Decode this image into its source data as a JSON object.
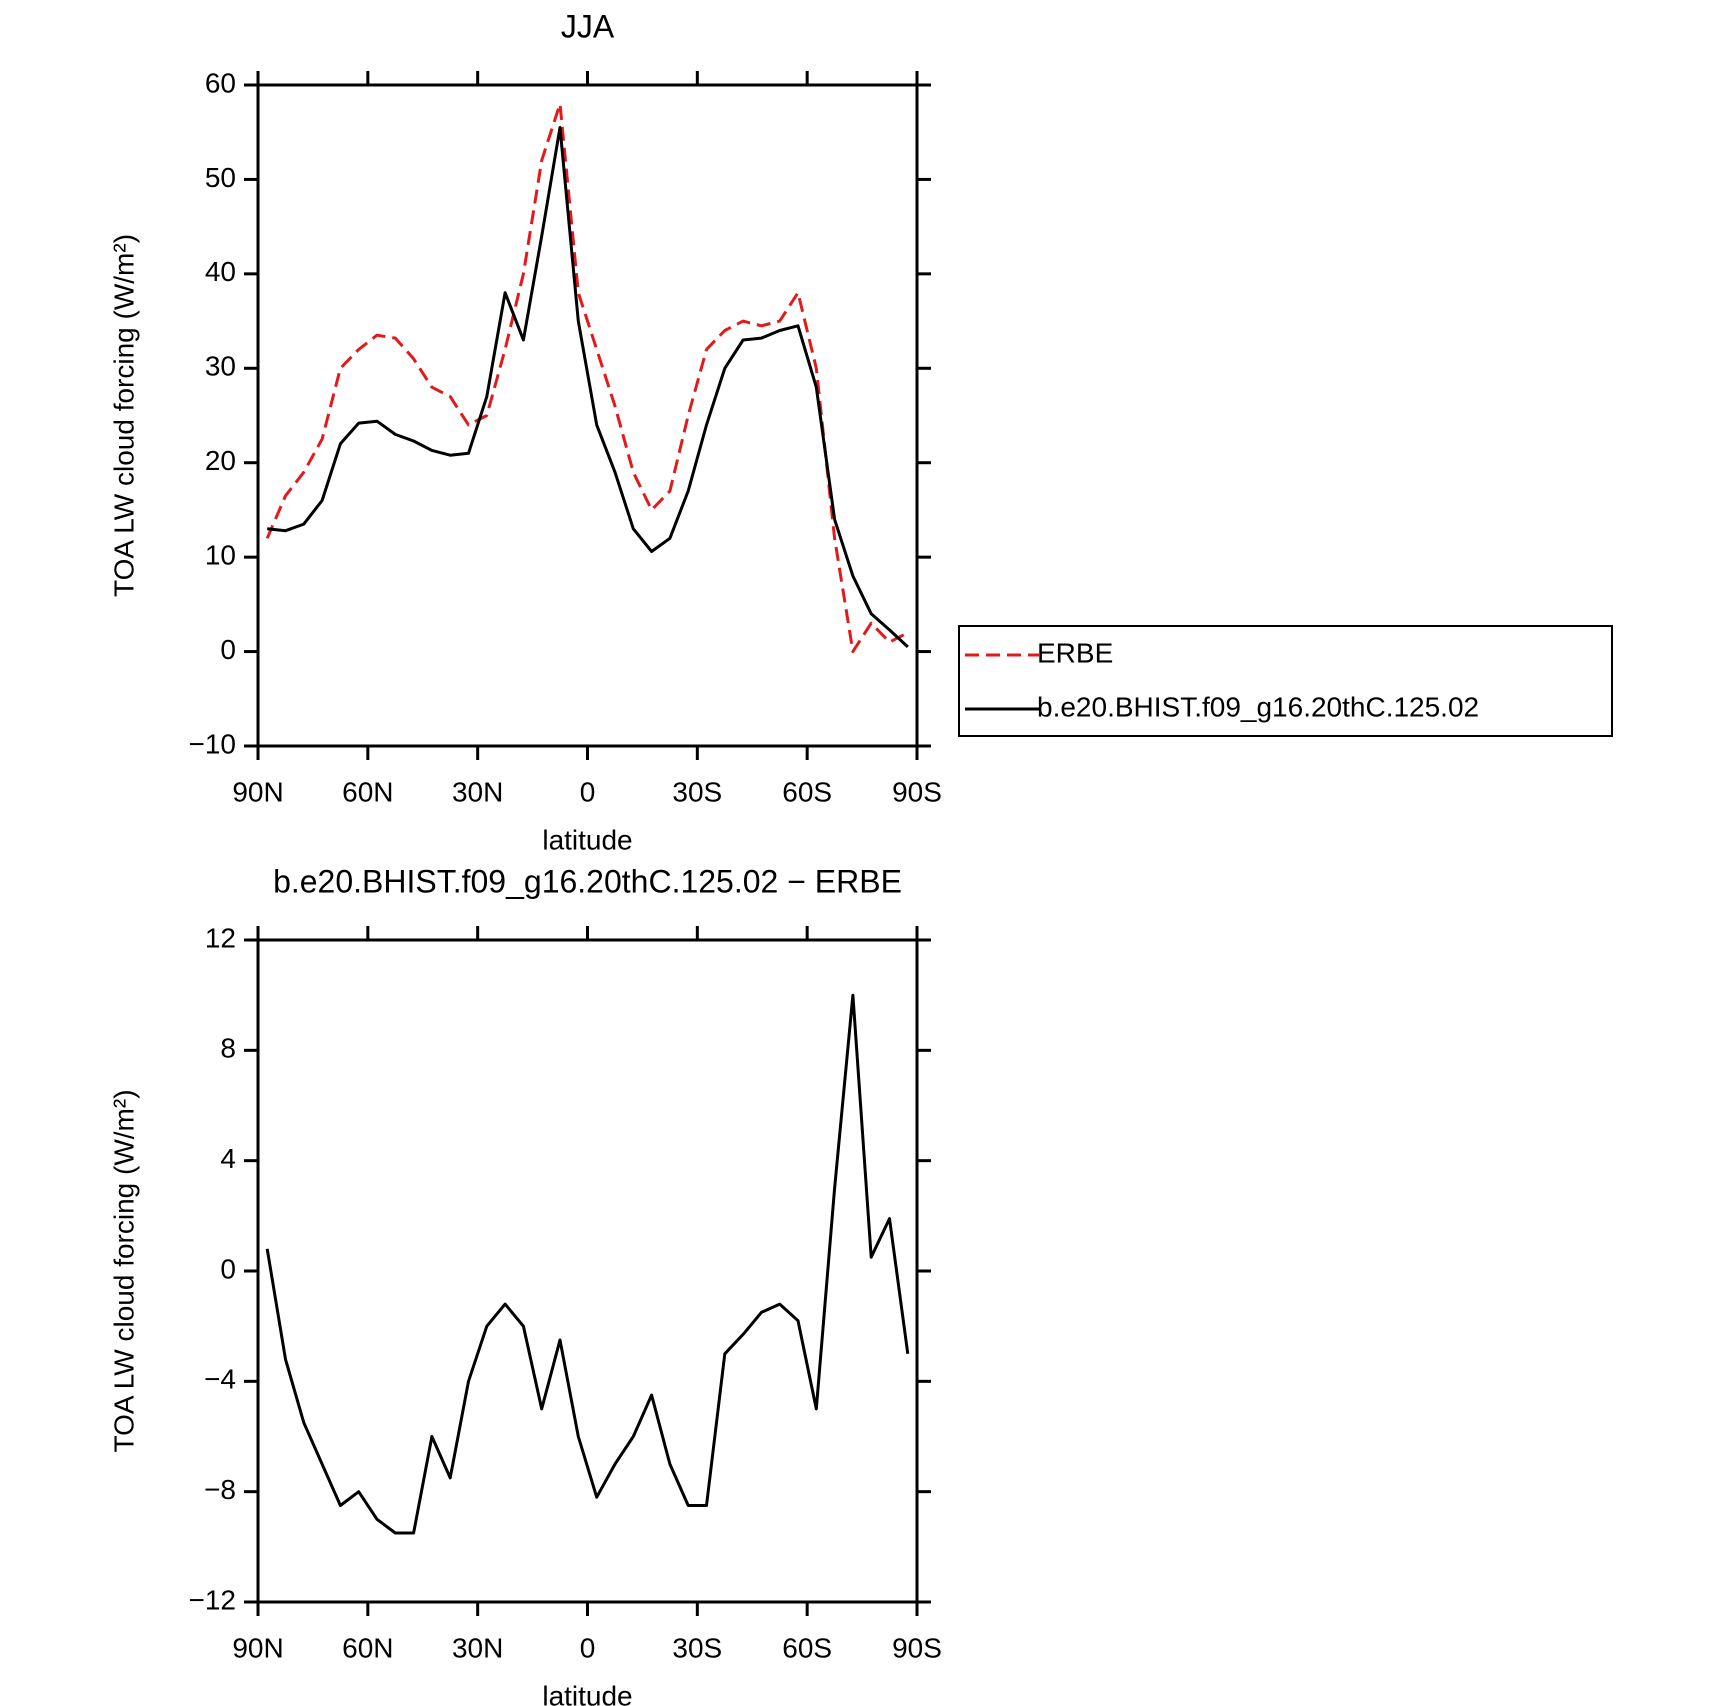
{
  "chart_data": [
    {
      "type": "line",
      "title": "JJA",
      "xlabel": "latitude",
      "ylabel": "TOA LW cloud forcing (W/m²)",
      "x": [
        87.5,
        82.5,
        77.5,
        72.5,
        67.5,
        62.5,
        57.5,
        52.5,
        47.5,
        42.5,
        37.5,
        32.5,
        27.5,
        22.5,
        17.5,
        12.5,
        7.5,
        2.5,
        -2.5,
        -7.5,
        -12.5,
        -17.5,
        -22.5,
        -27.5,
        -32.5,
        -37.5,
        -42.5,
        -47.5,
        -52.5,
        -57.5,
        -62.5,
        -67.5,
        -72.5,
        -77.5,
        -82.5,
        -87.5
      ],
      "xlim": [
        90,
        -90
      ],
      "xticks": [
        {
          "value": 90,
          "label": "90N"
        },
        {
          "value": 60,
          "label": "60N"
        },
        {
          "value": 30,
          "label": "30N"
        },
        0,
        {
          "value": -30,
          "label": "30S"
        },
        {
          "value": -60,
          "label": "60S"
        },
        {
          "value": -90,
          "label": "90S"
        }
      ],
      "ylim": [
        -10,
        60
      ],
      "yticks": [
        {
          "value": -10,
          "label": "−10"
        },
        0,
        10,
        20,
        30,
        40,
        50,
        60
      ],
      "grid": false,
      "legend": "right",
      "series": [
        {
          "name": "ERBE",
          "color": "#e31a1c",
          "linestyle": "dashed",
          "values": [
            12,
            16.5,
            19,
            22.5,
            30,
            32,
            33.5,
            33.2,
            31,
            28,
            27,
            24,
            25,
            32,
            40,
            52,
            58,
            38,
            32,
            26,
            19,
            15,
            17,
            25,
            32,
            34,
            35,
            34.5,
            35,
            38,
            30,
            12,
            0,
            3,
            1,
            2
          ]
        },
        {
          "name": "b.e20.BHIST.f09_g16.20thC.125.02",
          "color": "#000000",
          "linestyle": "solid",
          "values": [
            13,
            12.8,
            13.5,
            16,
            22,
            24.2,
            24.4,
            23,
            22.3,
            21.3,
            20.8,
            21,
            27,
            38,
            33,
            44,
            55.5,
            35,
            24,
            19,
            13,
            10.6,
            12,
            17,
            24,
            30,
            33,
            33.2,
            34,
            34.5,
            28,
            14,
            8,
            4,
            2.3,
            0.5
          ]
        }
      ]
    },
    {
      "type": "line",
      "title": "b.e20.BHIST.f09_g16.20thC.125.02 − ERBE",
      "xlabel": "latitude",
      "ylabel": "TOA LW cloud forcing (W/m²)",
      "x": [
        87.5,
        82.5,
        77.5,
        72.5,
        67.5,
        62.5,
        57.5,
        52.5,
        47.5,
        42.5,
        37.5,
        32.5,
        27.5,
        22.5,
        17.5,
        12.5,
        7.5,
        2.5,
        -2.5,
        -7.5,
        -12.5,
        -17.5,
        -22.5,
        -27.5,
        -32.5,
        -37.5,
        -42.5,
        -47.5,
        -52.5,
        -57.5,
        -62.5,
        -67.5,
        -72.5,
        -77.5,
        -82.5,
        -87.5
      ],
      "xlim": [
        90,
        -90
      ],
      "xticks": [
        {
          "value": 90,
          "label": "90N"
        },
        {
          "value": 60,
          "label": "60N"
        },
        {
          "value": 30,
          "label": "30N"
        },
        0,
        {
          "value": -30,
          "label": "30S"
        },
        {
          "value": -60,
          "label": "60S"
        },
        {
          "value": -90,
          "label": "90S"
        }
      ],
      "ylim": [
        -12,
        12
      ],
      "yticks": [
        {
          "value": -12,
          "label": "−12"
        },
        {
          "value": -8,
          "label": "−8"
        },
        {
          "value": -4,
          "label": "−4"
        },
        0,
        4,
        8,
        12
      ],
      "grid": false,
      "color": "#000000",
      "values": [
        0.8,
        -3.2,
        -5.5,
        -7,
        -8.5,
        -8,
        -9,
        -9.5,
        -9.5,
        -6,
        -7.5,
        -4,
        -2,
        -1.2,
        -2,
        -5,
        -2.5,
        -6,
        -8.2,
        -7,
        -6,
        -4.5,
        -7,
        -8.5,
        -8.5,
        -3,
        -2.3,
        -1.5,
        -1.2,
        -1.8,
        -5,
        3,
        10,
        0.5,
        1.9,
        -3
      ]
    }
  ]
}
